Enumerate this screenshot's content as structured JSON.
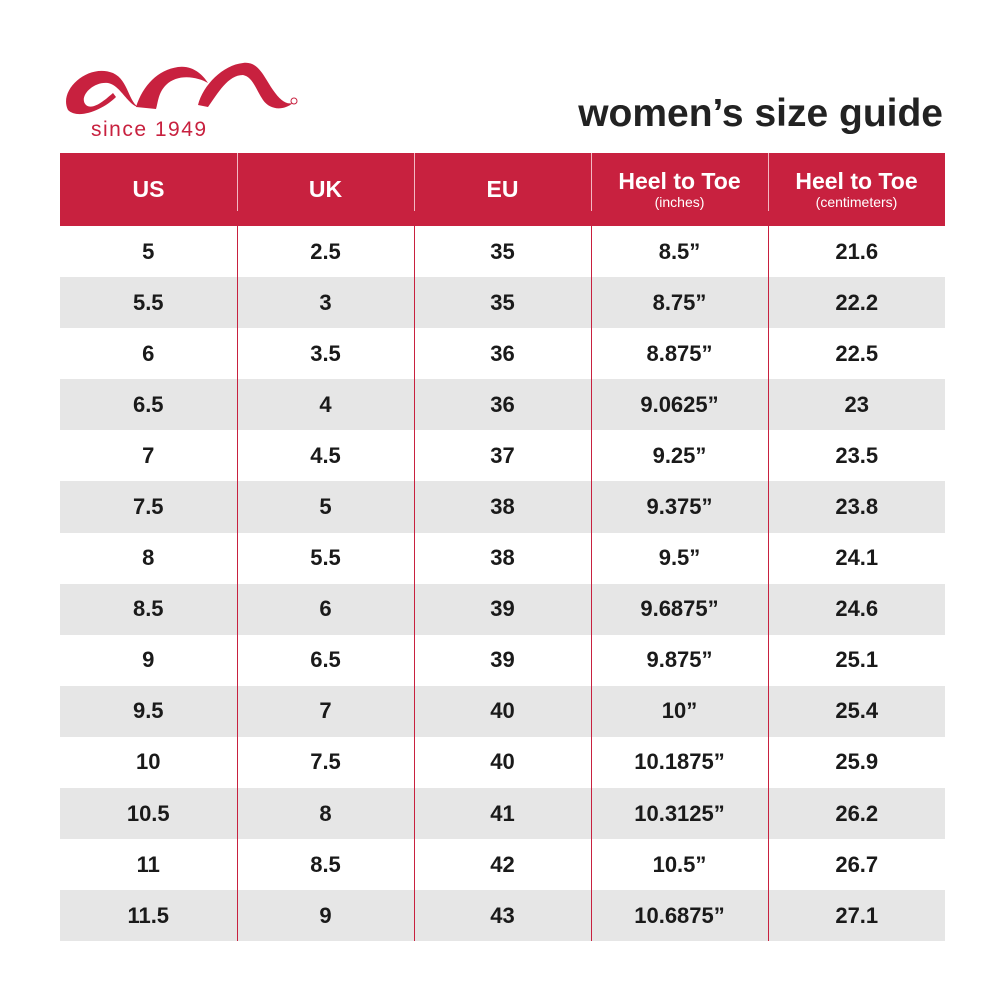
{
  "brand": {
    "logo_text": "ara",
    "tagline": "since 1949",
    "color": "#c8213f"
  },
  "title": "women’s size guide",
  "headers": [
    {
      "label": "US",
      "sub": ""
    },
    {
      "label": "UK",
      "sub": ""
    },
    {
      "label": "EU",
      "sub": ""
    },
    {
      "label": "Heel to Toe",
      "sub": "(inches)"
    },
    {
      "label": "Heel to Toe",
      "sub": "(centimeters)"
    }
  ],
  "rows": [
    [
      "5",
      "2.5",
      "35",
      "8.5”",
      "21.6"
    ],
    [
      "5.5",
      "3",
      "35",
      "8.75”",
      "22.2"
    ],
    [
      "6",
      "3.5",
      "36",
      "8.875”",
      "22.5"
    ],
    [
      "6.5",
      "4",
      "36",
      "9.0625”",
      "23"
    ],
    [
      "7",
      "4.5",
      "37",
      "9.25”",
      "23.5"
    ],
    [
      "7.5",
      "5",
      "38",
      "9.375”",
      "23.8"
    ],
    [
      "8",
      "5.5",
      "38",
      "9.5”",
      "24.1"
    ],
    [
      "8.5",
      "6",
      "39",
      "9.6875”",
      "24.6"
    ],
    [
      "9",
      "6.5",
      "39",
      "9.875”",
      "25.1"
    ],
    [
      "9.5",
      "7",
      "40",
      "10”",
      "25.4"
    ],
    [
      "10",
      "7.5",
      "40",
      "10.1875”",
      "25.9"
    ],
    [
      "10.5",
      "8",
      "41",
      "10.3125”",
      "26.2"
    ],
    [
      "11",
      "8.5",
      "42",
      "10.5”",
      "26.7"
    ],
    [
      "11.5",
      "9",
      "43",
      "10.6875”",
      "27.1"
    ]
  ]
}
